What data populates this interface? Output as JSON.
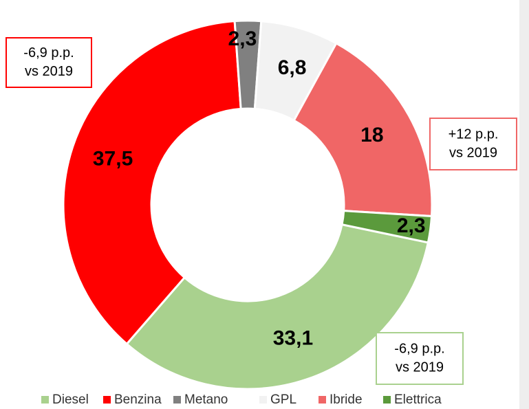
{
  "chart_data": {
    "type": "donut",
    "categories": [
      "Diesel",
      "Benzina",
      "Metano",
      "GPL",
      "Ibride",
      "Elettrica"
    ],
    "values": [
      33.1,
      37.5,
      2.3,
      6.8,
      18,
      2.3
    ],
    "value_labels": [
      "33,1",
      "37,5",
      "2,3",
      "6,8",
      "18",
      "2,3"
    ],
    "colors": [
      "#a9d18e",
      "#ff0000",
      "#808080",
      "#f2f2f2",
      "#f06666",
      "#5b9a3c"
    ],
    "annotations": [
      {
        "lines": [
          "-6,9 p.p.",
          "vs 2019"
        ],
        "color": "#ff0000"
      },
      {
        "lines": [
          "+12 p.p.",
          "vs 2019"
        ],
        "color": "#f06666"
      },
      {
        "lines": [
          "-6,9 p.p.",
          "vs 2019"
        ],
        "color": "#a9d18e"
      }
    ]
  }
}
